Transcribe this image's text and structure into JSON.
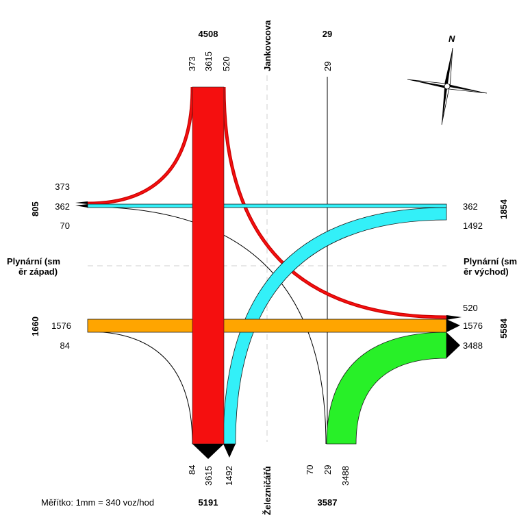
{
  "streets": {
    "north": "Jankovcova",
    "south": "Železničářů",
    "west": "Plynární (směr západ)",
    "west_line1": "Plynární (sm",
    "west_line2": "ěr západ)",
    "east_line1": "Plynární (sm",
    "east_line2": "ěr východ)"
  },
  "totals": {
    "north_left": "4508",
    "north_right": "29",
    "west_top": "805",
    "west_bottom": "1660",
    "east_top": "1854",
    "east_bottom": "5584",
    "south_left": "5191",
    "south_right": "3587"
  },
  "labels": {
    "north_373": "373",
    "north_3615": "3615",
    "north_520": "520",
    "north_29": "29",
    "west_373": "373",
    "west_362": "362",
    "west_70": "70",
    "west_1576": "1576",
    "west_84": "84",
    "east_362": "362",
    "east_1492": "1492",
    "east_520": "520",
    "east_1576": "1576",
    "east_3488": "3488",
    "south_84": "84",
    "south_3615": "3615",
    "south_1492": "1492",
    "south_70": "70",
    "south_29": "29",
    "south_3488": "3488"
  },
  "scale_text": "Měřítko: 1mm = 340 voz/hod",
  "compass_letter": "N",
  "colors": {
    "red": "#f50f0f",
    "redDark": "#c80000",
    "cyan": "#33f0f8",
    "orange": "#ffa500",
    "green": "#28f028"
  }
}
